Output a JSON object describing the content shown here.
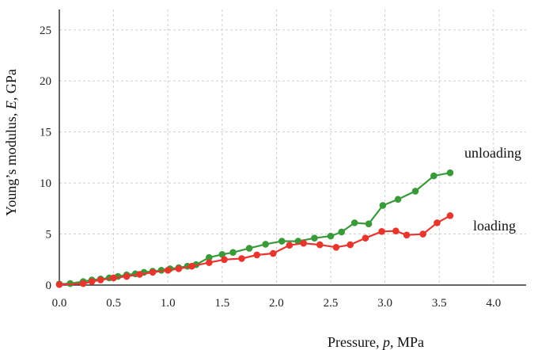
{
  "chart_data": {
    "type": "line",
    "xlabel_parts": [
      "Pressure, ",
      "p",
      ", MPa"
    ],
    "ylabel_parts": [
      "Young’s modulus, ",
      "E",
      ", GPa"
    ],
    "xlim": [
      0,
      4.3
    ],
    "ylim": [
      0,
      27
    ],
    "xticks": [
      "0.0",
      "0.5",
      "1.0",
      "1.5",
      "2.0",
      "2.5",
      "3.0",
      "3.5",
      "4.0"
    ],
    "yticks": [
      "0",
      "5",
      "10",
      "15",
      "20",
      "25"
    ],
    "grid": true,
    "series": [
      {
        "name": "unloading",
        "color": "#3a9a3a",
        "x": [
          0.0,
          0.1,
          0.22,
          0.3,
          0.38,
          0.46,
          0.54,
          0.62,
          0.7,
          0.78,
          0.86,
          0.94,
          1.02,
          1.1,
          1.18,
          1.26,
          1.38,
          1.5,
          1.6,
          1.75,
          1.9,
          2.05,
          2.2,
          2.35,
          2.5,
          2.6,
          2.72,
          2.85,
          2.98,
          3.12,
          3.28,
          3.45,
          3.6
        ],
        "y": [
          0.1,
          0.15,
          0.35,
          0.5,
          0.6,
          0.7,
          0.85,
          1.0,
          1.1,
          1.25,
          1.35,
          1.45,
          1.6,
          1.7,
          1.85,
          2.0,
          2.7,
          3.0,
          3.2,
          3.6,
          4.0,
          4.3,
          4.3,
          4.6,
          4.8,
          5.2,
          6.1,
          6.0,
          7.8,
          8.4,
          9.2,
          10.7,
          11.0
        ]
      },
      {
        "name": "loading",
        "color": "#e8352e",
        "x": [
          0.0,
          0.22,
          0.3,
          0.38,
          0.5,
          0.62,
          0.74,
          0.86,
          1.0,
          1.1,
          1.22,
          1.38,
          1.52,
          1.68,
          1.82,
          1.97,
          2.12,
          2.25,
          2.4,
          2.55,
          2.68,
          2.82,
          2.97,
          3.1,
          3.2,
          3.35,
          3.48,
          3.6
        ],
        "y": [
          0.05,
          0.15,
          0.35,
          0.5,
          0.7,
          0.85,
          1.05,
          1.25,
          1.45,
          1.6,
          1.85,
          2.2,
          2.5,
          2.6,
          2.95,
          3.1,
          3.9,
          4.1,
          3.95,
          3.7,
          3.95,
          4.6,
          5.25,
          5.3,
          4.9,
          5.0,
          6.1,
          6.8
        ]
      }
    ]
  }
}
